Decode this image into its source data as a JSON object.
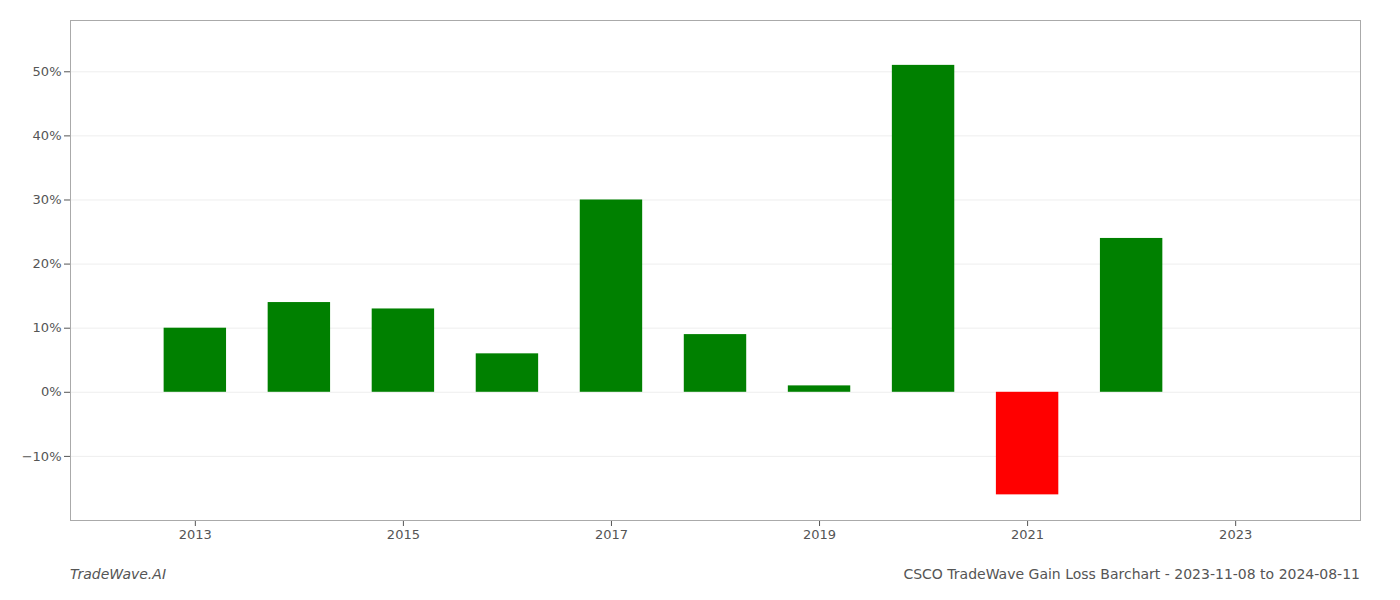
{
  "chart_data": {
    "type": "bar",
    "x": [
      2013,
      2014,
      2015,
      2016,
      2017,
      2018,
      2019,
      2020,
      2021,
      2022
    ],
    "values": [
      0.1,
      0.14,
      0.13,
      0.06,
      0.3,
      0.09,
      0.01,
      0.51,
      -0.16,
      0.24
    ],
    "colors": [
      "#008000",
      "#008000",
      "#008000",
      "#008000",
      "#008000",
      "#008000",
      "#008000",
      "#008000",
      "#ff0000",
      "#008000"
    ],
    "xlim": [
      2011.8,
      2024.2
    ],
    "xticks": [
      2013,
      2015,
      2017,
      2019,
      2021,
      2023
    ],
    "ylim": [
      -0.2,
      0.58
    ],
    "yticks": [
      {
        "value": -0.1,
        "label": "−10%"
      },
      {
        "value": 0.0,
        "label": "0%"
      },
      {
        "value": 0.1,
        "label": "10%"
      },
      {
        "value": 0.2,
        "label": "20%"
      },
      {
        "value": 0.3,
        "label": "30%"
      },
      {
        "value": 0.4,
        "label": "40%"
      },
      {
        "value": 0.5,
        "label": "50%"
      }
    ],
    "grid": true,
    "annotations": [
      "TradeWave.AI",
      "CSCO TradeWave Gain Loss Barchart - 2023-11-08 to 2024-08-11"
    ]
  }
}
